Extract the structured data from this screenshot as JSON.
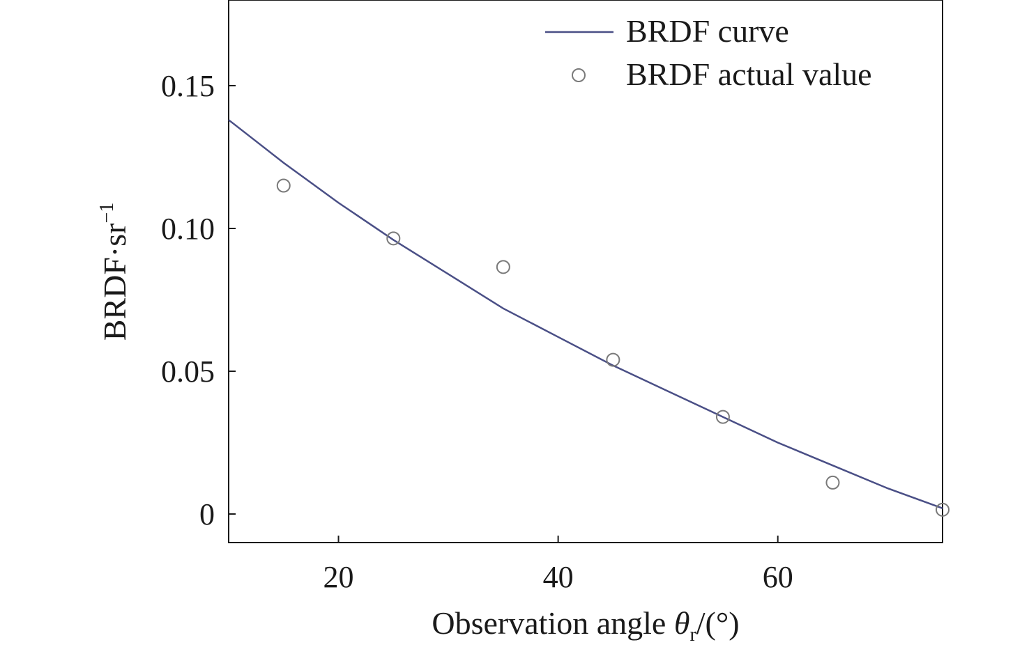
{
  "chart_data": {
    "type": "scatter",
    "xlabel": {
      "main": "Observation angle ",
      "symbol": "θ",
      "subscript": "r",
      "unit": "/(°)"
    },
    "ylabel": {
      "main": "BRDF·sr",
      "superscript": "−1"
    },
    "xlim": [
      10,
      75
    ],
    "ylim": [
      -0.01,
      0.18
    ],
    "xticks": [
      20,
      40,
      60
    ],
    "xtick_labels": [
      "20",
      "40",
      "60"
    ],
    "yticks": [
      0,
      0.05,
      0.1,
      0.15
    ],
    "ytick_labels": [
      "0",
      "0.05",
      "0.10",
      "0.15"
    ],
    "grid": false,
    "legend_position": "top-right",
    "series": [
      {
        "name": "BRDF curve",
        "kind": "line",
        "color": "#4a4f86",
        "x": [
          10,
          15,
          20,
          25,
          30,
          35,
          40,
          45,
          50,
          55,
          60,
          65,
          70,
          75
        ],
        "y": [
          0.138,
          0.123,
          0.109,
          0.096,
          0.084,
          0.072,
          0.062,
          0.052,
          0.043,
          0.034,
          0.025,
          0.017,
          0.009,
          0.002
        ]
      },
      {
        "name": "BRDF actual value",
        "kind": "scatter",
        "color": "#7a7a7a",
        "x": [
          15,
          25,
          35,
          45,
          55,
          65,
          75
        ],
        "y": [
          0.115,
          0.0965,
          0.0865,
          0.054,
          0.034,
          0.011,
          0.0015
        ]
      }
    ]
  }
}
